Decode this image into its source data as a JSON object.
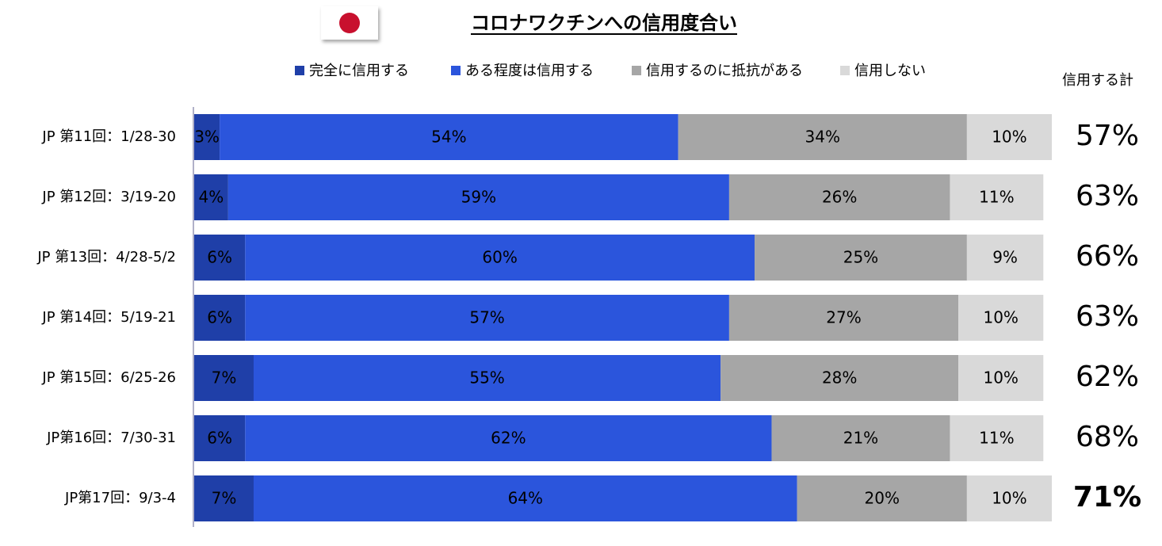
{
  "chart_data": {
    "type": "stacked_bar_horizontal",
    "title": "コロナワクチンへの信用度合い",
    "categories": [
      "JP 第11回：1/28-30",
      "JP 第12回：3/19-20",
      "JP 第13回：4/28-5/2",
      "JP 第14回：5/19-21",
      "JP 第15回：6/25-26",
      "JP第16回：7/30-31",
      "JP第17回：9/3-4"
    ],
    "series": [
      {
        "name": "完全に信用する",
        "color": "#1f3fa8",
        "label_color": "#ffffff",
        "values": [
          3,
          4,
          6,
          6,
          7,
          6,
          7
        ],
        "value_labels": [
          "3%",
          "4%",
          "6%",
          "6%",
          "7%",
          "6%",
          "7%"
        ]
      },
      {
        "name": "ある程度は信用する",
        "color": "#2b55dc",
        "label_color": "#ffffff",
        "values": [
          54,
          59,
          60,
          57,
          55,
          62,
          64
        ],
        "value_labels": [
          "54%",
          "59%",
          "60%",
          "57%",
          "55%",
          "62%",
          "64%"
        ]
      },
      {
        "name": "信用するのに抵抗がある",
        "color": "#a6a6a6",
        "label_color": "#ffffff",
        "values": [
          34,
          26,
          25,
          27,
          28,
          21,
          20
        ],
        "value_labels": [
          "34%",
          "26%",
          "25%",
          "27%",
          "28%",
          "21%",
          "20%"
        ]
      },
      {
        "name": "信用しない",
        "color": "#d9d9d9",
        "label_color": "#404040",
        "values": [
          10,
          11,
          9,
          10,
          10,
          11,
          10
        ],
        "value_labels": [
          "10%",
          "11%",
          "9%",
          "10%",
          "10%",
          "11%",
          "10%"
        ]
      }
    ],
    "totals": {
      "name": "信用する計",
      "values": [
        57,
        63,
        66,
        63,
        62,
        68,
        71
      ],
      "value_labels": [
        "57%",
        "63%",
        "66%",
        "63%",
        "62%",
        "68%",
        "71%"
      ],
      "colors": [
        "#14164a",
        "#14164a",
        "#14164a",
        "#14164a",
        "#14164a",
        "#14164a",
        "#ff0000"
      ]
    }
  }
}
